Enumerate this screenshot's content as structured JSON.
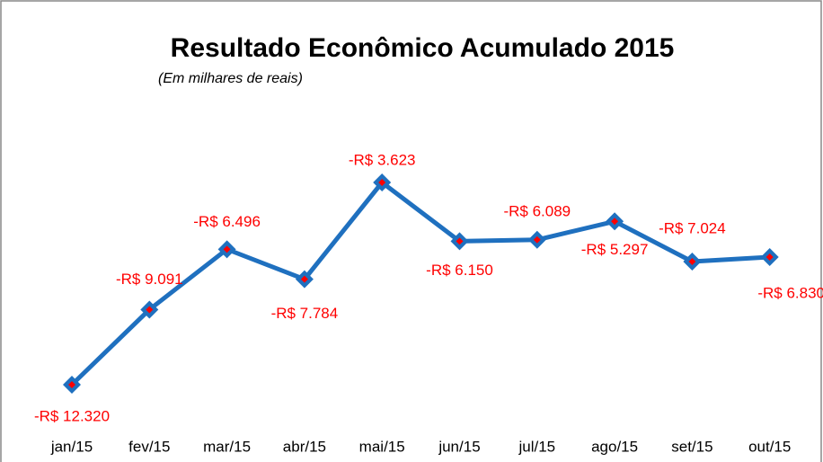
{
  "chart_data": {
    "type": "line",
    "title": "Resultado Econômico Acumulado 2015",
    "subtitle": "(Em milhares de reais)",
    "categories": [
      "jan/15",
      "fev/15",
      "mar/15",
      "abr/15",
      "mai/15",
      "jun/15",
      "jul/15",
      "ago/15",
      "set/15",
      "out/15"
    ],
    "values": [
      -12320,
      -9091,
      -6496,
      -7784,
      -3623,
      -6150,
      -6089,
      -5297,
      -7024,
      -6830
    ],
    "value_labels": [
      "-R$ 12.320",
      "-R$ 9.091",
      "-R$ 6.496",
      "-R$ 7.784",
      "-R$ 3.623",
      "-R$ 6.150",
      "-R$ 6.089",
      "-R$ 5.297",
      "-R$ 7.024",
      "-R$ 6.830"
    ],
    "color": "#1f70bf",
    "marker_color": "#ff0000",
    "label_color": "#ff0000"
  }
}
